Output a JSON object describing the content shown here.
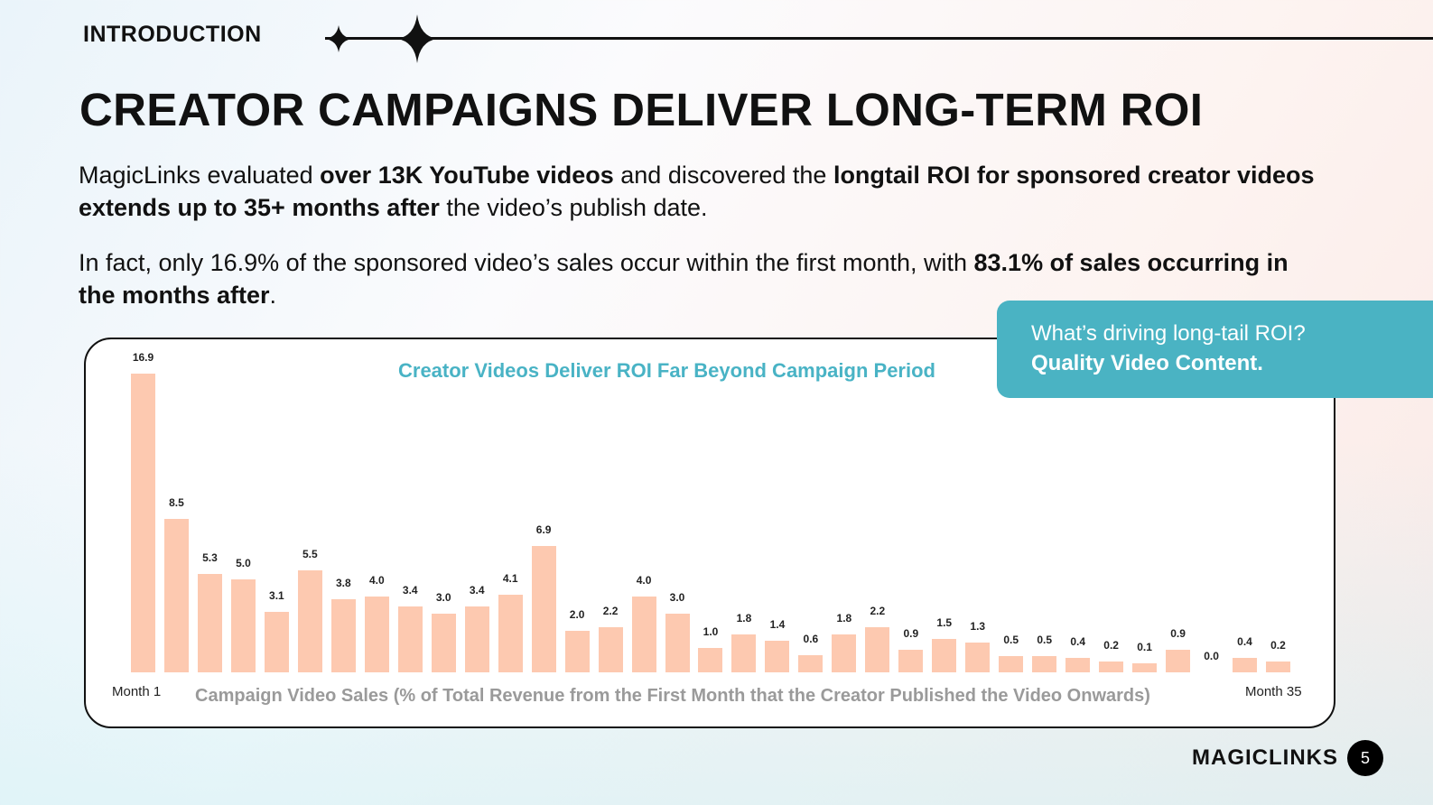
{
  "section": "INTRODUCTION",
  "title": "CREATOR CAMPAIGNS DELIVER LONG-TERM ROI",
  "para1": {
    "t1": "MagicLinks evaluated ",
    "b1": "over 13K YouTube videos",
    "t2": " and discovered the ",
    "b2": "longtail ROI for sponsored creator videos extends up to 35+ months after",
    "t3": " the video’s publish date."
  },
  "para2": {
    "t1": "In fact, only 16.9% of the sponsored video’s sales occur within the first month, with ",
    "b1": "83.1% of sales occurring in the months after",
    "t2": "."
  },
  "callout": {
    "question": "What’s driving long-tail ROI?",
    "answer": "Quality Video Content."
  },
  "footer": {
    "logo": "MAGICLINKS",
    "page": "5"
  },
  "colors": {
    "bar": "#fdc9b0",
    "accent": "#4ab3c3"
  },
  "chart_data": {
    "type": "bar",
    "title": "Creator Videos Deliver ROI Far Beyond Campaign Period",
    "xlabel": "Campaign Video Sales (% of Total Revenue from the First Month that the Creator Published the Video Onwards)",
    "first_label": "Month 1",
    "last_label": "Month 35",
    "values": [
      16.9,
      8.5,
      5.3,
      5.0,
      3.1,
      5.5,
      3.8,
      4.0,
      3.4,
      3.0,
      3.4,
      4.1,
      6.9,
      2.0,
      2.2,
      4.0,
      3.0,
      1.0,
      1.8,
      1.4,
      0.6,
      1.8,
      2.2,
      0.9,
      1.5,
      1.3,
      0.5,
      0.5,
      0.4,
      0.2,
      0.1,
      0.9,
      0.0,
      0.4,
      0.2
    ]
  }
}
